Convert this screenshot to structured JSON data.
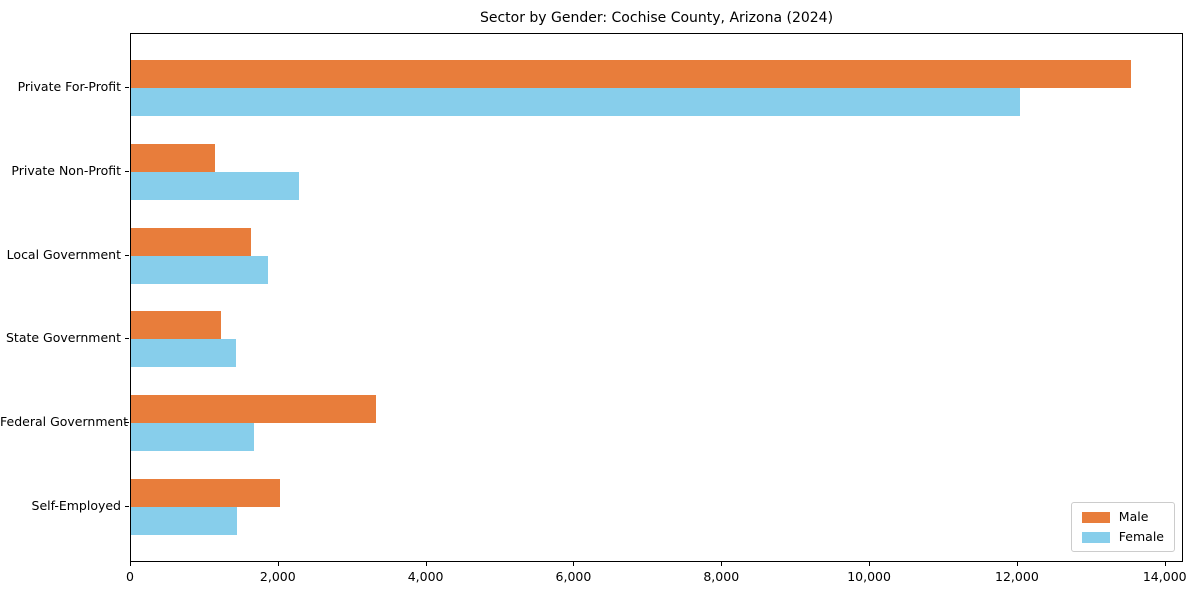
{
  "figure": {
    "background": "#FFFFFF"
  },
  "chart_data": {
    "type": "bar",
    "orientation": "horizontal",
    "title": "Sector by Gender: Cochise County, Arizona (2024)",
    "categories": [
      "Private For-Profit",
      "Private Non-Profit",
      "Local Government",
      "State Government",
      "Federal Government",
      "Self-Employed"
    ],
    "series": [
      {
        "name": "Male",
        "color": "#E87D3B",
        "values": [
          13530,
          1140,
          1630,
          1220,
          3310,
          2010
        ]
      },
      {
        "name": "Female",
        "color": "#87CEEB",
        "values": [
          12030,
          2270,
          1860,
          1420,
          1660,
          1440
        ]
      }
    ],
    "xlabel": "",
    "ylabel": "",
    "xlim": [
      0,
      14220
    ],
    "xticks": [
      0,
      2000,
      4000,
      6000,
      8000,
      10000,
      12000,
      14000
    ],
    "xtick_labels": [
      "0",
      "2,000",
      "4,000",
      "6,000",
      "8,000",
      "10,000",
      "12,000",
      "14,000"
    ],
    "grid": false,
    "legend": {
      "position": "lower right",
      "entries": [
        "Male",
        "Female"
      ]
    },
    "colors": {
      "spine": "#000000",
      "legend_border": "#CCCCCC",
      "text": "#000000"
    }
  }
}
